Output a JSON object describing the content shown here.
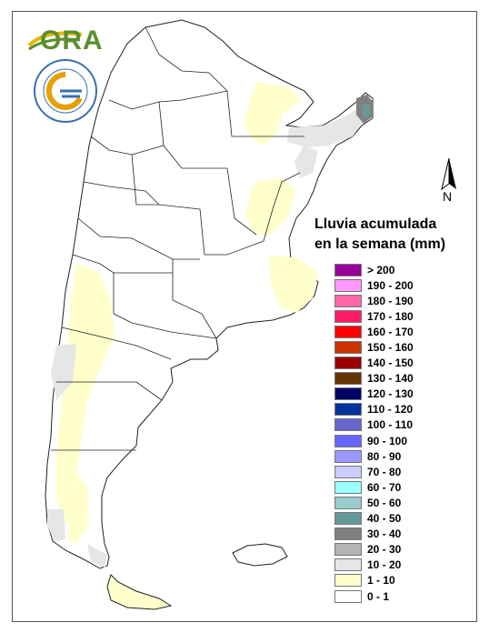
{
  "logo": {
    "ora_text": "ORA"
  },
  "north_arrow": {
    "letter": "N"
  },
  "legend": {
    "title_line1": "Lluvia acumulada",
    "title_line2": "en la semana (mm)",
    "items": [
      {
        "label": "> 200",
        "color": "#990099"
      },
      {
        "label": "190 - 200",
        "color": "#ff99ff"
      },
      {
        "label": "180 - 190",
        "color": "#ff66aa"
      },
      {
        "label": "170 - 180",
        "color": "#ff1a66"
      },
      {
        "label": "160 - 170",
        "color": "#ff0000"
      },
      {
        "label": "150 - 160",
        "color": "#cc3300"
      },
      {
        "label": "140 - 150",
        "color": "#990000"
      },
      {
        "label": "130 - 140",
        "color": "#663300"
      },
      {
        "label": "120 - 130",
        "color": "#000066"
      },
      {
        "label": "110 - 120",
        "color": "#003399"
      },
      {
        "label": "100 - 110",
        "color": "#6666cc"
      },
      {
        "label": "90 - 100",
        "color": "#6666ff"
      },
      {
        "label": "80 - 90",
        "color": "#9999ff"
      },
      {
        "label": "70 - 80",
        "color": "#ccccff"
      },
      {
        "label": "60 - 70",
        "color": "#99ffff"
      },
      {
        "label": "50 - 60",
        "color": "#99cccc"
      },
      {
        "label": "40 - 50",
        "color": "#669999"
      },
      {
        "label": "30 - 40",
        "color": "#808080"
      },
      {
        "label": "20 - 30",
        "color": "#b3b3b3"
      },
      {
        "label": "10 - 20",
        "color": "#e6e6e6"
      },
      {
        "label": "1 - 10",
        "color": "#ffffcc"
      },
      {
        "label": "0 - 1",
        "color": "#ffffff"
      }
    ]
  }
}
